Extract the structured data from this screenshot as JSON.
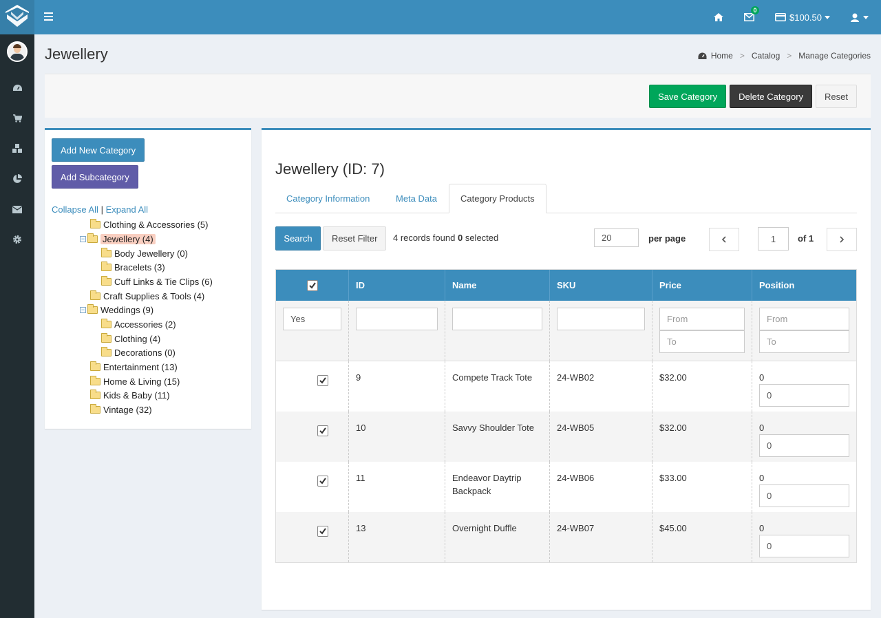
{
  "topbar": {
    "mail_badge": "0",
    "balance": "$100.50"
  },
  "page": {
    "title": "Jewellery"
  },
  "breadcrumb": [
    "Home",
    "Catalog",
    "Manage Categories"
  ],
  "actions": {
    "save": "Save Category",
    "delete": "Delete Category",
    "reset": "Reset"
  },
  "tree": {
    "add_new": "Add New Category",
    "add_sub": "Add Subcategory",
    "collapse_all": "Collapse All",
    "expand_all": "Expand All",
    "nodes": [
      {
        "label": "Clothing & Accessories (5)"
      },
      {
        "label": "Jewellery (4)"
      },
      {
        "label": "Body Jewellery (0)"
      },
      {
        "label": "Bracelets (3)"
      },
      {
        "label": "Cuff Links & Tie Clips (6)"
      },
      {
        "label": "Craft Supplies & Tools (4)"
      },
      {
        "label": "Weddings (9)"
      },
      {
        "label": "Accessories (2)"
      },
      {
        "label": "Clothing (4)"
      },
      {
        "label": "Decorations (0)"
      },
      {
        "label": "Entertainment (13)"
      },
      {
        "label": "Home & Living (15)"
      },
      {
        "label": "Kids & Baby (11)"
      },
      {
        "label": "Vintage (32)"
      }
    ]
  },
  "main": {
    "title": "Jewellery (ID: 7)",
    "tabs": [
      {
        "label": "Category Information"
      },
      {
        "label": "Meta Data"
      },
      {
        "label": "Category Products"
      }
    ],
    "toolbar": {
      "search": "Search",
      "reset_filter": "Reset Filter",
      "records_prefix": "4 records found",
      "selected_count": "0",
      "selected_suffix": "selected",
      "per_page_value": "20",
      "per_page_label": "per page",
      "page_value": "1",
      "of_label": "of 1"
    },
    "grid": {
      "columns": [
        "ID",
        "Name",
        "SKU",
        "Price",
        "Position"
      ],
      "filter": {
        "in_category": "Yes",
        "from_placeholder": "From",
        "to_placeholder": "To"
      },
      "rows": [
        {
          "id": "9",
          "name": "Compete Track Tote",
          "sku": "24-WB02",
          "price": "$32.00",
          "position": "0",
          "position_input": "0"
        },
        {
          "id": "10",
          "name": "Savvy Shoulder Tote",
          "sku": "24-WB05",
          "price": "$32.00",
          "position": "0",
          "position_input": "0"
        },
        {
          "id": "11",
          "name": "Endeavor Daytrip Backpack",
          "sku": "24-WB06",
          "price": "$33.00",
          "position": "0",
          "position_input": "0"
        },
        {
          "id": "13",
          "name": "Overnight Duffle",
          "sku": "24-WB07",
          "price": "$45.00",
          "position": "0",
          "position_input": "0"
        }
      ]
    }
  }
}
